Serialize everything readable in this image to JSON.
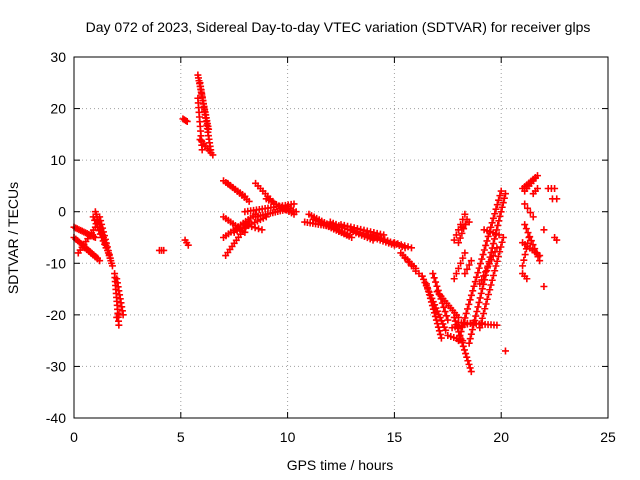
{
  "chart_data": {
    "type": "scatter",
    "title": "Day 072 of 2023, Sidereal Day-to-day VTEC variation (SDTVAR) for receiver glps",
    "xlabel": "GPS time / hours",
    "ylabel": "SDTVAR / TECUs",
    "xlim": [
      0,
      25
    ],
    "ylim": [
      -40,
      30
    ],
    "xticks": [
      0,
      5,
      10,
      15,
      20,
      25
    ],
    "yticks": [
      -40,
      -30,
      -20,
      -10,
      0,
      10,
      20,
      30
    ],
    "grid": true,
    "marker": "plus",
    "color": "#ff0000",
    "segments": [
      {
        "from": [
          0.0,
          -3.0
        ],
        "to": [
          1.0,
          -5.0
        ],
        "n": 14
      },
      {
        "from": [
          0.0,
          -5.0
        ],
        "to": [
          1.1,
          -9.0
        ],
        "n": 14
      },
      {
        "from": [
          0.2,
          -8.0
        ],
        "to": [
          1.0,
          -3.0
        ],
        "n": 10
      },
      {
        "from": [
          0.5,
          -7.0
        ],
        "to": [
          1.2,
          -9.5
        ],
        "n": 8
      },
      {
        "from": [
          1.0,
          0.0
        ],
        "to": [
          1.8,
          -10.5
        ],
        "n": 22
      },
      {
        "from": [
          1.2,
          -1.0
        ],
        "to": [
          1.7,
          -9.0
        ],
        "n": 12
      },
      {
        "from": [
          0.9,
          -1.0
        ],
        "to": [
          1.5,
          -7.0
        ],
        "n": 10
      },
      {
        "from": [
          1.9,
          -12.0
        ],
        "to": [
          2.1,
          -22.0
        ],
        "n": 14
      },
      {
        "from": [
          2.0,
          -13.0
        ],
        "to": [
          2.3,
          -20.0
        ],
        "n": 10
      },
      {
        "from": [
          4.0,
          -7.5
        ],
        "to": [
          4.2,
          -7.5
        ],
        "n": 3
      },
      {
        "from": [
          5.2,
          -5.5
        ],
        "to": [
          5.35,
          -6.5
        ],
        "n": 3
      },
      {
        "from": [
          5.1,
          18.0
        ],
        "to": [
          5.3,
          17.5
        ],
        "n": 4
      },
      {
        "from": [
          5.8,
          26.5
        ],
        "to": [
          6.3,
          16.0
        ],
        "n": 20
      },
      {
        "from": [
          5.9,
          25.0
        ],
        "to": [
          6.4,
          12.0
        ],
        "n": 20
      },
      {
        "from": [
          5.8,
          22.0
        ],
        "to": [
          6.0,
          12.0
        ],
        "n": 12
      },
      {
        "from": [
          5.9,
          14.0
        ],
        "to": [
          6.5,
          11.0
        ],
        "n": 8
      },
      {
        "from": [
          7.0,
          6.0
        ],
        "to": [
          8.0,
          3.0
        ],
        "n": 10
      },
      {
        "from": [
          7.2,
          5.5
        ],
        "to": [
          8.2,
          2.0
        ],
        "n": 10
      },
      {
        "from": [
          7.0,
          -1.0
        ],
        "to": [
          8.0,
          -4.0
        ],
        "n": 10
      },
      {
        "from": [
          7.0,
          -5.0
        ],
        "to": [
          8.5,
          -0.5
        ],
        "n": 14
      },
      {
        "from": [
          7.1,
          -8.5
        ],
        "to": [
          8.2,
          -2.0
        ],
        "n": 12
      },
      {
        "from": [
          7.5,
          -4.0
        ],
        "to": [
          9.0,
          -1.0
        ],
        "n": 12
      },
      {
        "from": [
          8.0,
          -2.5
        ],
        "to": [
          8.8,
          -3.5
        ],
        "n": 6
      },
      {
        "from": [
          8.5,
          5.5
        ],
        "to": [
          9.3,
          2.0
        ],
        "n": 8
      },
      {
        "from": [
          8.0,
          0.0
        ],
        "to": [
          10.3,
          1.5
        ],
        "n": 18
      },
      {
        "from": [
          8.5,
          -1.0
        ],
        "to": [
          10.0,
          0.5
        ],
        "n": 14
      },
      {
        "from": [
          9.0,
          2.5
        ],
        "to": [
          10.3,
          -0.5
        ],
        "n": 12
      },
      {
        "from": [
          10.0,
          1.0
        ],
        "to": [
          10.4,
          0.0
        ],
        "n": 4
      },
      {
        "from": [
          10.8,
          -2.0
        ],
        "to": [
          12.2,
          -3.0
        ],
        "n": 12
      },
      {
        "from": [
          11.0,
          -0.5
        ],
        "to": [
          12.8,
          -4.5
        ],
        "n": 16
      },
      {
        "from": [
          11.2,
          -1.5
        ],
        "to": [
          13.0,
          -5.0
        ],
        "n": 16
      },
      {
        "from": [
          12.0,
          -2.0
        ],
        "to": [
          14.0,
          -5.5
        ],
        "n": 16
      },
      {
        "from": [
          12.5,
          -2.5
        ],
        "to": [
          14.5,
          -4.5
        ],
        "n": 14
      },
      {
        "from": [
          13.0,
          -3.5
        ],
        "to": [
          15.0,
          -6.5
        ],
        "n": 16
      },
      {
        "from": [
          14.0,
          -4.5
        ],
        "to": [
          15.5,
          -7.0
        ],
        "n": 12
      },
      {
        "from": [
          15.0,
          -6.0
        ],
        "to": [
          15.8,
          -7.0
        ],
        "n": 6
      },
      {
        "from": [
          15.3,
          -8.0
        ],
        "to": [
          16.0,
          -11.0
        ],
        "n": 8
      },
      {
        "from": [
          15.5,
          -9.0
        ],
        "to": [
          15.8,
          -10.5
        ],
        "n": 3
      },
      {
        "from": [
          16.0,
          -11.5
        ],
        "to": [
          16.3,
          -12.5
        ],
        "n": 3
      },
      {
        "from": [
          16.3,
          -12.5
        ],
        "to": [
          17.4,
          -23.0
        ],
        "n": 18
      },
      {
        "from": [
          16.5,
          -14.0
        ],
        "to": [
          17.2,
          -24.5
        ],
        "n": 16
      },
      {
        "from": [
          16.8,
          -12.0
        ],
        "to": [
          17.5,
          -21.0
        ],
        "n": 12
      },
      {
        "from": [
          17.0,
          -15.5
        ],
        "to": [
          18.0,
          -20.5
        ],
        "n": 12
      },
      {
        "from": [
          17.8,
          -20.5
        ],
        "to": [
          18.6,
          -31.0
        ],
        "n": 16
      },
      {
        "from": [
          17.5,
          -24.0
        ],
        "to": [
          18.2,
          -25.0
        ],
        "n": 6
      },
      {
        "from": [
          18.0,
          -21.5
        ],
        "to": [
          19.8,
          -22.0
        ],
        "n": 14
      },
      {
        "from": [
          17.7,
          -22.5
        ],
        "to": [
          18.7,
          -21.5
        ],
        "n": 8
      },
      {
        "from": [
          18.0,
          -25.0
        ],
        "to": [
          20.0,
          4.0
        ],
        "n": 34
      },
      {
        "from": [
          18.5,
          -25.5
        ],
        "to": [
          20.2,
          3.5
        ],
        "n": 34
      },
      {
        "from": [
          19.0,
          -22.5
        ],
        "to": [
          20.1,
          -5.0
        ],
        "n": 20
      },
      {
        "from": [
          19.0,
          -14.0
        ],
        "to": [
          19.8,
          -7.0
        ],
        "n": 10
      },
      {
        "from": [
          17.8,
          -13.0
        ],
        "to": [
          18.3,
          -8.0
        ],
        "n": 6
      },
      {
        "from": [
          18.3,
          -12.0
        ],
        "to": [
          18.6,
          -9.5
        ],
        "n": 4
      },
      {
        "from": [
          18.0,
          -6.0
        ],
        "to": [
          18.4,
          -1.5
        ],
        "n": 6
      },
      {
        "from": [
          17.8,
          -5.5
        ],
        "to": [
          18.3,
          -0.5
        ],
        "n": 6
      },
      {
        "from": [
          18.0,
          -3.5
        ],
        "to": [
          18.5,
          -2.0
        ],
        "n": 4
      },
      {
        "from": [
          19.2,
          -3.5
        ],
        "to": [
          19.9,
          -4.5
        ],
        "n": 6
      },
      {
        "from": [
          21.0,
          -6.0
        ],
        "to": [
          21.8,
          -8.5
        ],
        "n": 8
      },
      {
        "from": [
          21.1,
          -2.5
        ],
        "to": [
          21.8,
          -9.5
        ],
        "n": 10
      },
      {
        "from": [
          21.0,
          -10.5
        ],
        "to": [
          21.3,
          -5.0
        ],
        "n": 6
      },
      {
        "from": [
          21.0,
          4.5
        ],
        "to": [
          21.7,
          7.0
        ],
        "n": 8
      },
      {
        "from": [
          21.1,
          4.0
        ],
        "to": [
          21.6,
          6.5
        ],
        "n": 6
      },
      {
        "from": [
          21.1,
          1.5
        ],
        "to": [
          21.5,
          -1.0
        ],
        "n": 4
      },
      {
        "from": [
          21.0,
          -12.0
        ],
        "to": [
          21.2,
          -13.0
        ],
        "n": 3
      },
      {
        "from": [
          21.5,
          3.5
        ],
        "to": [
          21.7,
          4.5
        ],
        "n": 3
      },
      {
        "from": [
          22.2,
          4.5
        ],
        "to": [
          22.5,
          4.5
        ],
        "n": 3
      },
      {
        "from": [
          22.4,
          2.5
        ],
        "to": [
          22.6,
          2.5
        ],
        "n": 2
      },
      {
        "from": [
          22.5,
          -5.0
        ],
        "to": [
          22.6,
          -5.5
        ],
        "n": 2
      },
      {
        "from": [
          22.0,
          -3.5
        ],
        "to": [
          22.1,
          -3.5
        ],
        "n": 1
      },
      {
        "from": [
          22.0,
          -14.5
        ],
        "to": [
          22.1,
          -14.5
        ],
        "n": 1
      },
      {
        "from": [
          20.2,
          -27.0
        ],
        "to": [
          20.2,
          -27.0
        ],
        "n": 1
      },
      {
        "from": [
          2.0,
          -20.5
        ],
        "to": [
          2.1,
          -20.0
        ],
        "n": 2
      }
    ]
  }
}
